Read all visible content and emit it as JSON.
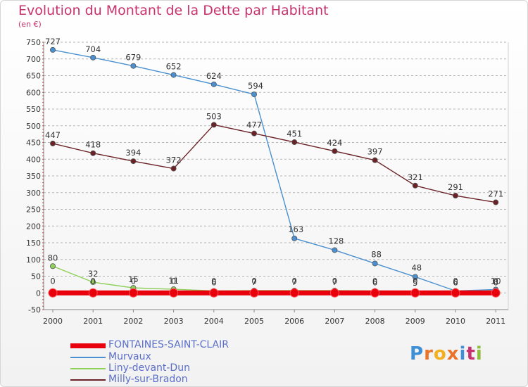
{
  "header": {
    "title": "Evolution du Montant de la Dette par Habitant",
    "subtitle": "(en €)"
  },
  "logo": {
    "text": "Proxiti",
    "letter_colors": [
      "#3d8fd6",
      "#e8742a",
      "#f2b01e",
      "#e8742a",
      "#3d8fd6",
      "#c8326c",
      "#8cbf3a"
    ]
  },
  "chart_data": {
    "type": "line",
    "title": "Evolution du Montant de la Dette par Habitant",
    "ylabel": "(en €)",
    "xlabel": "",
    "x": [
      "2000",
      "2001",
      "2002",
      "2003",
      "2004",
      "2005",
      "2006",
      "2007",
      "2008",
      "2009",
      "2010",
      "2011"
    ],
    "ylim": [
      -50,
      750
    ],
    "yticks": [
      -50,
      0,
      50,
      100,
      150,
      200,
      250,
      300,
      350,
      400,
      450,
      500,
      550,
      600,
      650,
      700,
      750
    ],
    "grid": "horizontal-dashed",
    "legend_position": "bottom-left",
    "series": [
      {
        "name": "FONTAINES-SAINT-CLAIR",
        "color": "#e8000d",
        "values": [
          0,
          0,
          0,
          0,
          0,
          0,
          0,
          0,
          0,
          0,
          0,
          0
        ],
        "labels": [
          "0",
          "0",
          "0",
          "0",
          "0",
          "0",
          "0",
          "0",
          "0",
          "0",
          "0",
          "0"
        ]
      },
      {
        "name": "Murvaux",
        "color": "#4a90d0",
        "values": [
          727,
          704,
          679,
          652,
          624,
          594,
          163,
          128,
          88,
          48,
          6,
          10
        ],
        "labels": [
          "727",
          "704",
          "679",
          "652",
          "624",
          "594",
          "163",
          "128",
          "88",
          "48",
          "6",
          "10"
        ]
      },
      {
        "name": "Liny-devant-Dun",
        "color": "#8fd05a",
        "values": [
          80,
          32,
          15,
          11,
          6,
          7,
          7,
          7,
          6,
          5,
          6,
          6
        ],
        "labels": [
          "80",
          "32",
          "15",
          "11",
          "6",
          "7",
          "7",
          "7",
          "6",
          "5",
          "6",
          "6"
        ]
      },
      {
        "name": "Milly-sur-Bradon",
        "color": "#6b2226",
        "values": [
          447,
          418,
          394,
          372,
          503,
          477,
          451,
          424,
          397,
          321,
          291,
          271
        ],
        "labels": [
          "447",
          "418",
          "394",
          "372",
          "503",
          "477",
          "451",
          "424",
          "397",
          "321",
          "291",
          "271"
        ]
      }
    ]
  }
}
